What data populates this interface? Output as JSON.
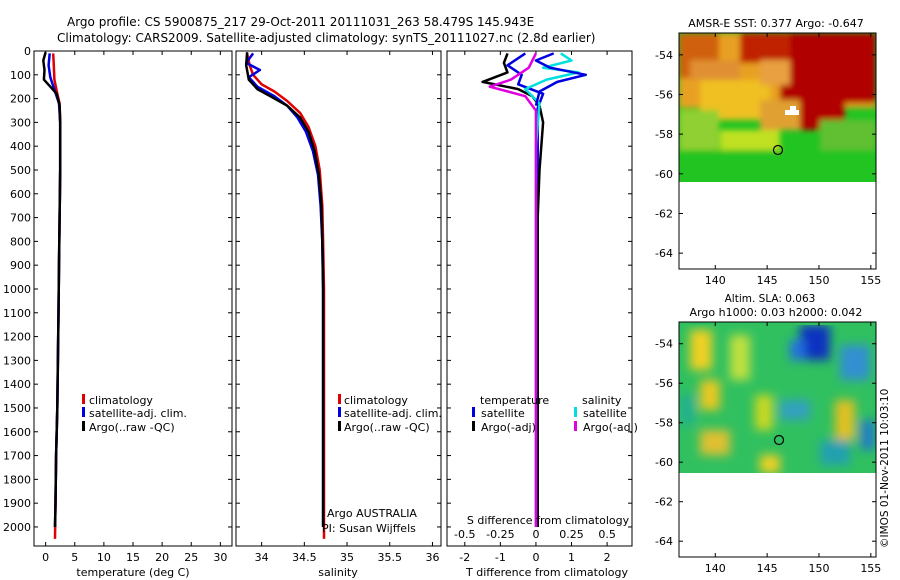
{
  "header": {
    "title_line1": "Argo profile: CS 5900875_217 29-Oct-2011 20111031_263 58.479S 145.943E",
    "title_line2": "Climatology: CARS2009. Satellite-adjusted climatology: synTS_20111027.nc (2.8d earlier)"
  },
  "colors": {
    "climatology": "#e00000",
    "satellite": "#0000e0",
    "argo": "#000000",
    "sat_salinity": "#00e0e0",
    "argo_salinity": "#e000e0"
  },
  "chart_data": [
    {
      "type": "line",
      "id": "temperature",
      "xlabel": "temperature (deg C)",
      "ylabel": "",
      "xlim": [
        -2,
        32
      ],
      "ylim": [
        2080,
        0
      ],
      "xticks": [
        "0",
        "5",
        "10",
        "15",
        "20",
        "25",
        "30"
      ],
      "xtick_values": [
        0,
        5,
        10,
        15,
        20,
        25,
        30
      ],
      "yticks": [
        "0",
        "100",
        "200",
        "300",
        "400",
        "500",
        "600",
        "700",
        "800",
        "900",
        "1000",
        "1100",
        "1200",
        "1300",
        "1400",
        "1500",
        "1600",
        "1700",
        "1800",
        "1900",
        "2000"
      ],
      "ytick_values": [
        0,
        100,
        200,
        300,
        400,
        500,
        600,
        700,
        800,
        900,
        1000,
        1100,
        1200,
        1300,
        1400,
        1500,
        1600,
        1700,
        1800,
        1900,
        2000
      ],
      "legend": [
        "climatology",
        "satellite-adj. clim.",
        "Argo(..raw -QC)"
      ],
      "series": [
        {
          "name": "climatology",
          "color": "#e00000",
          "points": [
            [
              1.3,
              10
            ],
            [
              1.4,
              60
            ],
            [
              1.5,
              120
            ],
            [
              2.0,
              180
            ],
            [
              2.4,
              220
            ],
            [
              2.5,
              300
            ],
            [
              2.5,
              500
            ],
            [
              2.4,
              700
            ],
            [
              2.3,
              900
            ],
            [
              2.2,
              1100
            ],
            [
              2.1,
              1300
            ],
            [
              2.0,
              1500
            ],
            [
              1.8,
              1700
            ],
            [
              1.7,
              1900
            ],
            [
              1.6,
              2050
            ]
          ]
        },
        {
          "name": "satellite-adj. clim.",
          "color": "#0000e0",
          "points": [
            [
              0.7,
              10
            ],
            [
              0.5,
              60
            ],
            [
              0.8,
              110
            ],
            [
              1.6,
              170
            ],
            [
              2.3,
              220
            ],
            [
              2.5,
              300
            ],
            [
              2.5,
              500
            ],
            [
              2.4,
              700
            ],
            [
              2.3,
              900
            ],
            [
              2.2,
              1100
            ],
            [
              2.1,
              1300
            ],
            [
              2.0,
              1500
            ],
            [
              1.8,
              1700
            ],
            [
              1.7,
              1900
            ],
            [
              1.6,
              2000
            ]
          ]
        },
        {
          "name": "Argo(..raw -QC)",
          "color": "#000000",
          "points": [
            [
              0.0,
              5
            ],
            [
              -0.4,
              40
            ],
            [
              -0.2,
              80
            ],
            [
              -0.3,
              120
            ],
            [
              0.8,
              150
            ],
            [
              1.9,
              180
            ],
            [
              2.4,
              230
            ],
            [
              2.5,
              300
            ],
            [
              2.5,
              500
            ],
            [
              2.4,
              700
            ],
            [
              2.3,
              900
            ],
            [
              2.2,
              1100
            ],
            [
              2.1,
              1300
            ],
            [
              2.0,
              1500
            ],
            [
              1.8,
              1700
            ],
            [
              1.7,
              1900
            ],
            [
              1.6,
              2000
            ]
          ]
        }
      ]
    },
    {
      "type": "line",
      "id": "salinity",
      "xlabel": "salinity",
      "xlim": [
        33.7,
        36.1
      ],
      "ylim": [
        2080,
        0
      ],
      "xticks": [
        "34",
        "34.5",
        "35",
        "35.5",
        "36"
      ],
      "xtick_values": [
        34,
        34.5,
        35,
        35.5,
        36
      ],
      "legend": [
        "climatology",
        "satellite-adj. clim.",
        "Argo(..raw -QC)"
      ],
      "annotation": [
        "Argo AUSTRALIA",
        "PI: Susan Wijffels"
      ],
      "series": [
        {
          "name": "climatology",
          "color": "#e00000",
          "points": [
            [
              33.83,
              10
            ],
            [
              33.86,
              60
            ],
            [
              33.9,
              100
            ],
            [
              34.0,
              140
            ],
            [
              34.15,
              170
            ],
            [
              34.3,
              210
            ],
            [
              34.45,
              260
            ],
            [
              34.55,
              320
            ],
            [
              34.63,
              400
            ],
            [
              34.68,
              500
            ],
            [
              34.71,
              650
            ],
            [
              34.72,
              800
            ],
            [
              34.73,
              1000
            ],
            [
              34.73,
              1300
            ],
            [
              34.73,
              1600
            ],
            [
              34.73,
              2050
            ]
          ]
        },
        {
          "name": "satellite-adj. clim.",
          "color": "#0000e0",
          "points": [
            [
              33.9,
              10
            ],
            [
              33.82,
              50
            ],
            [
              33.98,
              80
            ],
            [
              33.85,
              110
            ],
            [
              33.95,
              150
            ],
            [
              34.15,
              190
            ],
            [
              34.3,
              230
            ],
            [
              34.42,
              280
            ],
            [
              34.52,
              340
            ],
            [
              34.6,
              420
            ],
            [
              34.66,
              520
            ],
            [
              34.69,
              650
            ],
            [
              34.71,
              800
            ],
            [
              34.72,
              1000
            ],
            [
              34.72,
              1300
            ],
            [
              34.72,
              1600
            ],
            [
              34.72,
              2000
            ]
          ]
        },
        {
          "name": "Argo(..raw -QC)",
          "color": "#000000",
          "points": [
            [
              33.83,
              5
            ],
            [
              33.82,
              60
            ],
            [
              33.85,
              120
            ],
            [
              33.95,
              160
            ],
            [
              34.1,
              190
            ],
            [
              34.3,
              230
            ],
            [
              34.45,
              280
            ],
            [
              34.55,
              340
            ],
            [
              34.62,
              420
            ],
            [
              34.67,
              520
            ],
            [
              34.7,
              650
            ],
            [
              34.71,
              800
            ],
            [
              34.72,
              1000
            ],
            [
              34.72,
              1300
            ],
            [
              34.72,
              1600
            ],
            [
              34.72,
              2000
            ]
          ]
        }
      ]
    },
    {
      "type": "line",
      "id": "difference",
      "xlabel": "T difference from climatology",
      "xlabel_top": "S difference from climatology",
      "xlim": [
        -2.5,
        2.7
      ],
      "ylim": [
        2080,
        0
      ],
      "xticks": [
        "-2",
        "-1",
        "0",
        "1",
        "2"
      ],
      "xtick_values": [
        -2,
        -1,
        0,
        1,
        2
      ],
      "xticks_top": [
        "-0.5",
        "-0.25",
        "0",
        "0.25",
        "0.5"
      ],
      "xticks_top_positions": [
        -2,
        -1,
        0,
        1,
        2
      ],
      "legend": {
        "temperature": [
          "satellite",
          "Argo(-adj)"
        ],
        "salinity": [
          "satellite",
          "Argo(-adj)"
        ]
      },
      "legend_headers": [
        "temperature",
        "salinity"
      ],
      "series": [
        {
          "name": "temperature satellite",
          "color": "#0000e0",
          "points": [
            [
              -0.3,
              10
            ],
            [
              -0.8,
              60
            ],
            [
              -0.4,
              100
            ],
            [
              -0.5,
              140
            ],
            [
              0.2,
              180
            ],
            [
              0.05,
              240
            ],
            [
              0.05,
              400
            ],
            [
              0.05,
              800
            ],
            [
              0.05,
              1200
            ],
            [
              0.05,
              1600
            ],
            [
              0.05,
              2000
            ]
          ]
        },
        {
          "name": "temperature Argo(-adj)",
          "color": "#000000",
          "points": [
            [
              -0.8,
              10
            ],
            [
              -0.9,
              50
            ],
            [
              -0.8,
              90
            ],
            [
              -1.5,
              130
            ],
            [
              -0.5,
              160
            ],
            [
              -0.1,
              190
            ],
            [
              0.1,
              230
            ],
            [
              0.2,
              300
            ],
            [
              0.15,
              400
            ],
            [
              0.1,
              500
            ],
            [
              0.05,
              700
            ],
            [
              0.05,
              1000
            ],
            [
              0.05,
              1500
            ],
            [
              0.05,
              2000
            ]
          ]
        },
        {
          "name": "salinity satellite",
          "color": "#00e0e0",
          "points": [
            [
              0.7,
              10
            ],
            [
              1.0,
              40
            ],
            [
              0.2,
              70
            ],
            [
              1.2,
              90
            ],
            [
              0.3,
              120
            ],
            [
              -0.3,
              160
            ],
            [
              0.1,
              220
            ],
            [
              0.0,
              400
            ],
            [
              0.0,
              800
            ],
            [
              0.0,
              1200
            ],
            [
              0.0,
              1600
            ],
            [
              0.0,
              2000
            ]
          ]
        },
        {
          "name": "salinity Argo(-adj)",
          "color": "#e000e0",
          "points": [
            [
              0.0,
              10
            ],
            [
              -0.2,
              70
            ],
            [
              -0.7,
              120
            ],
            [
              -1.3,
              150
            ],
            [
              -0.3,
              190
            ],
            [
              0.0,
              250
            ],
            [
              0.0,
              500
            ],
            [
              0.0,
              1000
            ],
            [
              0.0,
              1500
            ],
            [
              0.0,
              2000
            ]
          ]
        },
        {
          "name": "satellite (upper)",
          "color": "#0000e0",
          "points": [
            [
              0.5,
              10
            ],
            [
              0.0,
              40
            ],
            [
              0.4,
              70
            ],
            [
              1.4,
              100
            ],
            [
              0.6,
              130
            ],
            [
              0.1,
              170
            ],
            [
              0.0,
              230
            ]
          ]
        }
      ]
    },
    {
      "type": "heatmap",
      "id": "sst_map",
      "title": "AMSR-E SST: 0.377 Argo: -0.647",
      "xlim": [
        136.5,
        155.5
      ],
      "ylim": [
        -64.8,
        -52.9
      ],
      "xticks": [
        "140",
        "145",
        "150",
        "155"
      ],
      "xtick_values": [
        140,
        145,
        150,
        155
      ],
      "yticks": [
        "-54",
        "-56",
        "-58",
        "-60",
        "-62",
        "-64"
      ],
      "ytick_values": [
        -54,
        -56,
        -58,
        -60,
        -62,
        -64
      ],
      "data_extent_lat": [
        -60,
        -52.9
      ],
      "marker": {
        "lon": 145.943,
        "lat": -58.479
      }
    },
    {
      "type": "heatmap",
      "id": "sla_map",
      "title": "Altim. SLA: 0.063",
      "subtitle": "Argo h1000: 0.03 h2000: 0.042",
      "xlim": [
        136.5,
        155.5
      ],
      "ylim": [
        -64.8,
        -52.9
      ],
      "xticks": [
        "140",
        "145",
        "150",
        "155"
      ],
      "xtick_values": [
        140,
        145,
        150,
        155
      ],
      "yticks": [
        "-54",
        "-56",
        "-58",
        "-60",
        "-62",
        "-64"
      ],
      "ytick_values": [
        -54,
        -56,
        -58,
        -60,
        -62,
        -64
      ],
      "data_extent_lat": [
        -60,
        -52.9
      ],
      "marker": {
        "lon": 145.943,
        "lat": -58.479
      }
    }
  ],
  "footer": {
    "stamp": "©IMOS 01-Nov-2011 10:03:10"
  }
}
